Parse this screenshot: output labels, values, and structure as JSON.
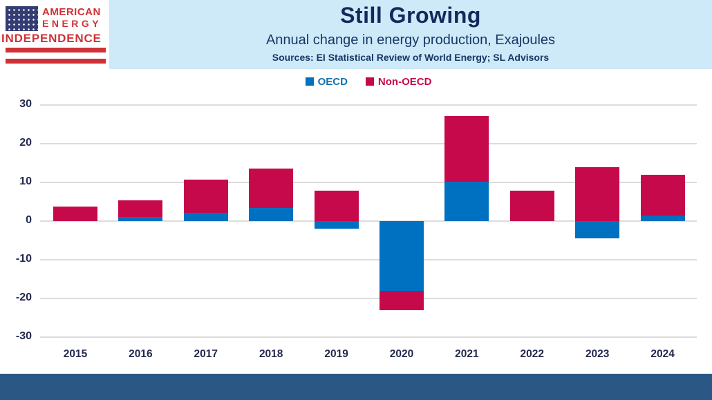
{
  "header": {
    "logo": {
      "line1": "AMERICAN",
      "line2": "ENERGY",
      "line3": "INDEPENDENCE"
    },
    "title": "Still Growing",
    "subtitle": "Annual change in energy production, Exajoules",
    "sources": "Sources: EI Statistical Review of World Energy; SL Advisors"
  },
  "legend": [
    {
      "label": "OECD",
      "color": "#0070C0",
      "text_color": "#1272AE"
    },
    {
      "label": "Non-OECD",
      "color": "#C5094B",
      "text_color": "#C5094B"
    }
  ],
  "chart_data": {
    "type": "bar",
    "stacked": true,
    "title": "Still Growing",
    "subtitle": "Annual change in energy production, Exajoules",
    "xlabel": "",
    "ylabel": "Exajoules",
    "categories": [
      "2015",
      "2016",
      "2017",
      "2018",
      "2019",
      "2020",
      "2021",
      "2022",
      "2023",
      "2024"
    ],
    "series": [
      {
        "name": "OECD",
        "color": "#0070C0",
        "values": [
          0,
          1.0,
          2.2,
          3.4,
          -2.0,
          -18.0,
          10.2,
          0,
          -4.5,
          1.4
        ]
      },
      {
        "name": "Non-OECD",
        "color": "#C5094B",
        "values": [
          3.7,
          4.3,
          8.5,
          10.1,
          7.8,
          -5.0,
          17.0,
          7.8,
          14.0,
          10.6
        ]
      }
    ],
    "ylim": [
      -30,
      30
    ],
    "yticks": [
      30,
      20,
      10,
      0,
      -10,
      -20,
      -30
    ],
    "grid": true,
    "legend_position": "top-center"
  },
  "colors": {
    "oecd_blue": "#0070C0",
    "non_oecd_red": "#C5094B",
    "banner_bg": "#CEE9F8",
    "title_navy": "#13295B",
    "subtitle_navy": "#173765",
    "axis_text": "#23294E",
    "gridline": "#DCDCDC",
    "footer_bar": "#2A5783",
    "logo_red": "#CF3136",
    "logo_navy": "#333D73"
  }
}
